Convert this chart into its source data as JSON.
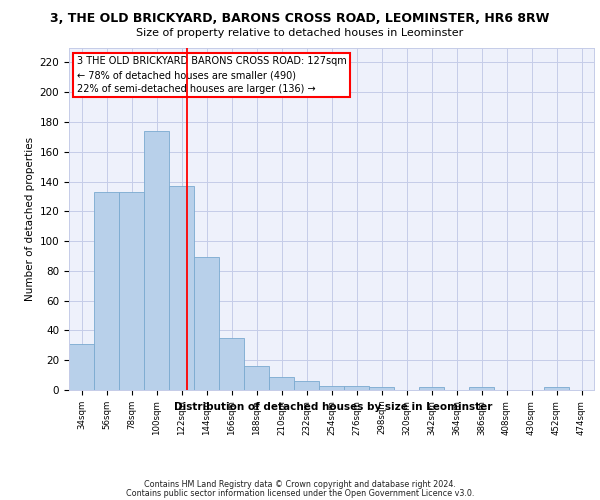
{
  "title": "3, THE OLD BRICKYARD, BARONS CROSS ROAD, LEOMINSTER, HR6 8RW",
  "subtitle": "Size of property relative to detached houses in Leominster",
  "xlabel": "Distribution of detached houses by size in Leominster",
  "ylabel": "Number of detached properties",
  "categories": [
    "34sqm",
    "56sqm",
    "78sqm",
    "100sqm",
    "122sqm",
    "144sqm",
    "166sqm",
    "188sqm",
    "210sqm",
    "232sqm",
    "254sqm",
    "276sqm",
    "298sqm",
    "320sqm",
    "342sqm",
    "364sqm",
    "386sqm",
    "408sqm",
    "430sqm",
    "452sqm",
    "474sqm"
  ],
  "values": [
    31,
    133,
    133,
    174,
    137,
    89,
    35,
    16,
    9,
    6,
    3,
    3,
    2,
    0,
    2,
    0,
    2,
    0,
    0,
    2,
    0
  ],
  "bar_color": "#b8d0ea",
  "bar_edge_color": "#7aaad0",
  "annotation_title": "3 THE OLD BRICKYARD BARONS CROSS ROAD: 127sqm",
  "annotation_line1": "← 78% of detached houses are smaller (490)",
  "annotation_line2": "22% of semi-detached houses are larger (136) →",
  "ylim": [
    0,
    230
  ],
  "yticks": [
    0,
    20,
    40,
    60,
    80,
    100,
    120,
    140,
    160,
    180,
    200,
    220
  ],
  "footer1": "Contains HM Land Registry data © Crown copyright and database right 2024.",
  "footer2": "Contains public sector information licensed under the Open Government Licence v3.0.",
  "bg_color": "#eef1fb",
  "grid_color": "#c5cce8",
  "bar_width": 1.0,
  "red_line_index": 4.23
}
